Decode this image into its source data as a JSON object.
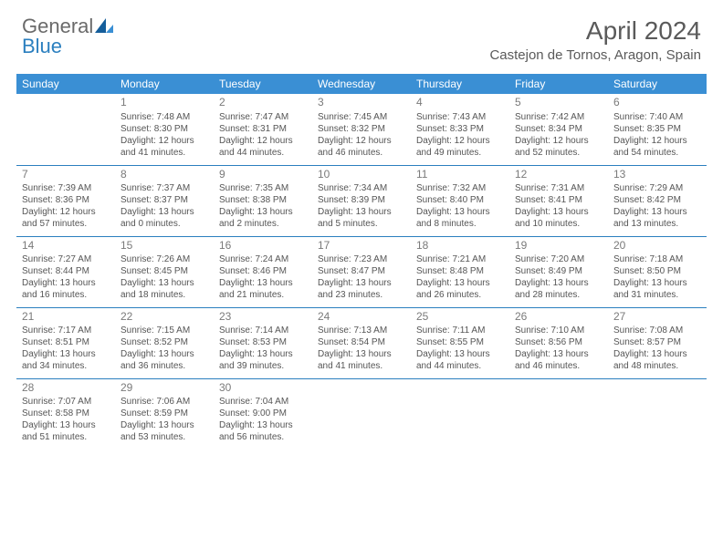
{
  "logo": {
    "part1": "General",
    "part2": "Blue"
  },
  "title": "April 2024",
  "location": "Castejon de Tornos, Aragon, Spain",
  "colors": {
    "header_bg": "#3a8fd4",
    "header_text": "#ffffff",
    "border": "#2b7fbf",
    "logo_gray": "#6a6a6a",
    "logo_blue": "#2b7fbf",
    "text": "#555555"
  },
  "weekdays": [
    "Sunday",
    "Monday",
    "Tuesday",
    "Wednesday",
    "Thursday",
    "Friday",
    "Saturday"
  ],
  "weeks": [
    [
      null,
      {
        "n": "1",
        "sr": "Sunrise: 7:48 AM",
        "ss": "Sunset: 8:30 PM",
        "dl": "Daylight: 12 hours and 41 minutes."
      },
      {
        "n": "2",
        "sr": "Sunrise: 7:47 AM",
        "ss": "Sunset: 8:31 PM",
        "dl": "Daylight: 12 hours and 44 minutes."
      },
      {
        "n": "3",
        "sr": "Sunrise: 7:45 AM",
        "ss": "Sunset: 8:32 PM",
        "dl": "Daylight: 12 hours and 46 minutes."
      },
      {
        "n": "4",
        "sr": "Sunrise: 7:43 AM",
        "ss": "Sunset: 8:33 PM",
        "dl": "Daylight: 12 hours and 49 minutes."
      },
      {
        "n": "5",
        "sr": "Sunrise: 7:42 AM",
        "ss": "Sunset: 8:34 PM",
        "dl": "Daylight: 12 hours and 52 minutes."
      },
      {
        "n": "6",
        "sr": "Sunrise: 7:40 AM",
        "ss": "Sunset: 8:35 PM",
        "dl": "Daylight: 12 hours and 54 minutes."
      }
    ],
    [
      {
        "n": "7",
        "sr": "Sunrise: 7:39 AM",
        "ss": "Sunset: 8:36 PM",
        "dl": "Daylight: 12 hours and 57 minutes."
      },
      {
        "n": "8",
        "sr": "Sunrise: 7:37 AM",
        "ss": "Sunset: 8:37 PM",
        "dl": "Daylight: 13 hours and 0 minutes."
      },
      {
        "n": "9",
        "sr": "Sunrise: 7:35 AM",
        "ss": "Sunset: 8:38 PM",
        "dl": "Daylight: 13 hours and 2 minutes."
      },
      {
        "n": "10",
        "sr": "Sunrise: 7:34 AM",
        "ss": "Sunset: 8:39 PM",
        "dl": "Daylight: 13 hours and 5 minutes."
      },
      {
        "n": "11",
        "sr": "Sunrise: 7:32 AM",
        "ss": "Sunset: 8:40 PM",
        "dl": "Daylight: 13 hours and 8 minutes."
      },
      {
        "n": "12",
        "sr": "Sunrise: 7:31 AM",
        "ss": "Sunset: 8:41 PM",
        "dl": "Daylight: 13 hours and 10 minutes."
      },
      {
        "n": "13",
        "sr": "Sunrise: 7:29 AM",
        "ss": "Sunset: 8:42 PM",
        "dl": "Daylight: 13 hours and 13 minutes."
      }
    ],
    [
      {
        "n": "14",
        "sr": "Sunrise: 7:27 AM",
        "ss": "Sunset: 8:44 PM",
        "dl": "Daylight: 13 hours and 16 minutes."
      },
      {
        "n": "15",
        "sr": "Sunrise: 7:26 AM",
        "ss": "Sunset: 8:45 PM",
        "dl": "Daylight: 13 hours and 18 minutes."
      },
      {
        "n": "16",
        "sr": "Sunrise: 7:24 AM",
        "ss": "Sunset: 8:46 PM",
        "dl": "Daylight: 13 hours and 21 minutes."
      },
      {
        "n": "17",
        "sr": "Sunrise: 7:23 AM",
        "ss": "Sunset: 8:47 PM",
        "dl": "Daylight: 13 hours and 23 minutes."
      },
      {
        "n": "18",
        "sr": "Sunrise: 7:21 AM",
        "ss": "Sunset: 8:48 PM",
        "dl": "Daylight: 13 hours and 26 minutes."
      },
      {
        "n": "19",
        "sr": "Sunrise: 7:20 AM",
        "ss": "Sunset: 8:49 PM",
        "dl": "Daylight: 13 hours and 28 minutes."
      },
      {
        "n": "20",
        "sr": "Sunrise: 7:18 AM",
        "ss": "Sunset: 8:50 PM",
        "dl": "Daylight: 13 hours and 31 minutes."
      }
    ],
    [
      {
        "n": "21",
        "sr": "Sunrise: 7:17 AM",
        "ss": "Sunset: 8:51 PM",
        "dl": "Daylight: 13 hours and 34 minutes."
      },
      {
        "n": "22",
        "sr": "Sunrise: 7:15 AM",
        "ss": "Sunset: 8:52 PM",
        "dl": "Daylight: 13 hours and 36 minutes."
      },
      {
        "n": "23",
        "sr": "Sunrise: 7:14 AM",
        "ss": "Sunset: 8:53 PM",
        "dl": "Daylight: 13 hours and 39 minutes."
      },
      {
        "n": "24",
        "sr": "Sunrise: 7:13 AM",
        "ss": "Sunset: 8:54 PM",
        "dl": "Daylight: 13 hours and 41 minutes."
      },
      {
        "n": "25",
        "sr": "Sunrise: 7:11 AM",
        "ss": "Sunset: 8:55 PM",
        "dl": "Daylight: 13 hours and 44 minutes."
      },
      {
        "n": "26",
        "sr": "Sunrise: 7:10 AM",
        "ss": "Sunset: 8:56 PM",
        "dl": "Daylight: 13 hours and 46 minutes."
      },
      {
        "n": "27",
        "sr": "Sunrise: 7:08 AM",
        "ss": "Sunset: 8:57 PM",
        "dl": "Daylight: 13 hours and 48 minutes."
      }
    ],
    [
      {
        "n": "28",
        "sr": "Sunrise: 7:07 AM",
        "ss": "Sunset: 8:58 PM",
        "dl": "Daylight: 13 hours and 51 minutes."
      },
      {
        "n": "29",
        "sr": "Sunrise: 7:06 AM",
        "ss": "Sunset: 8:59 PM",
        "dl": "Daylight: 13 hours and 53 minutes."
      },
      {
        "n": "30",
        "sr": "Sunrise: 7:04 AM",
        "ss": "Sunset: 9:00 PM",
        "dl": "Daylight: 13 hours and 56 minutes."
      },
      null,
      null,
      null,
      null
    ]
  ]
}
